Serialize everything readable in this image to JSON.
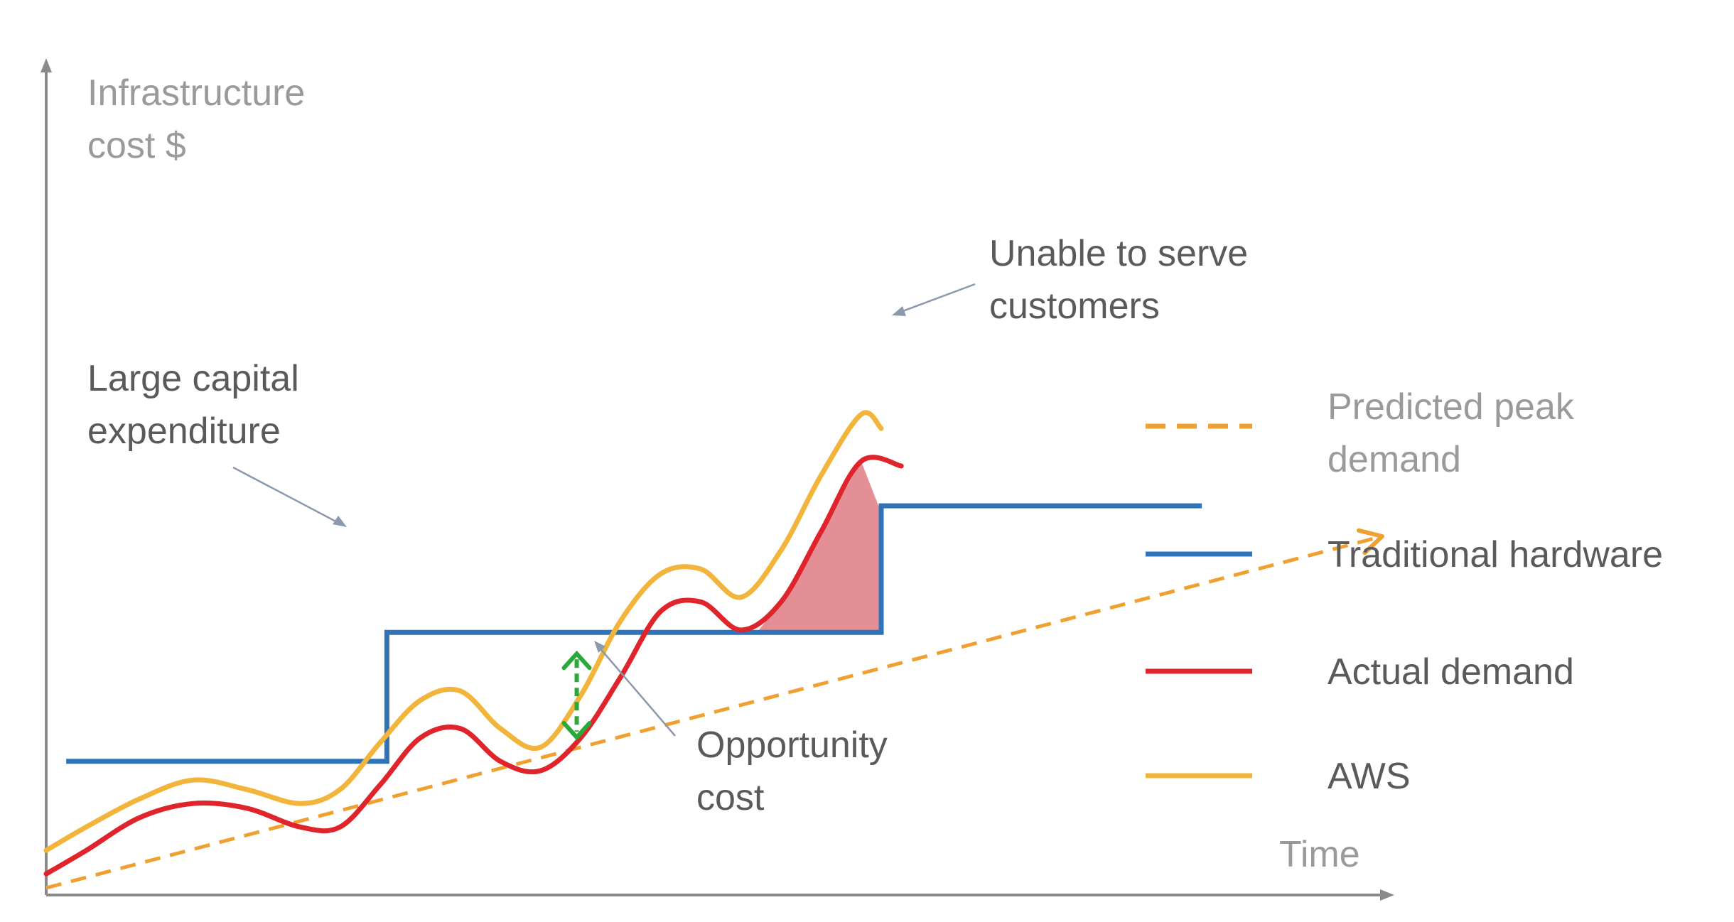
{
  "colors": {
    "predicted": "#f0a030",
    "traditional": "#2f73b8",
    "actual": "#e0242b",
    "aws": "#f2b43a",
    "axis": "#8a8a8a",
    "opportunity": "#2aa83a",
    "unable_fill": "#d96a72",
    "pointer": "#8a99ad"
  },
  "chart_data": {
    "type": "line",
    "ylabel": [
      "Infrastructure",
      "cost $"
    ],
    "xlabel": "Time",
    "grid": false,
    "legend_position": "right",
    "series": [
      {
        "key": "predicted",
        "name": "Predicted peak demand",
        "name_lines": [
          "Predicted peak",
          "demand"
        ],
        "style": "dashed",
        "x": [
          0,
          100
        ],
        "y": [
          0,
          75
        ]
      },
      {
        "key": "traditional",
        "name": "Traditional hardware",
        "name_lines": [
          "Traditional hardware"
        ],
        "style": "step",
        "x": [
          1.5,
          25.5,
          25.5,
          62.5,
          62.5,
          86.5
        ],
        "y": [
          27,
          27,
          54.5,
          54.5,
          81.5,
          81.5
        ]
      },
      {
        "key": "actual",
        "name": "Actual demand",
        "name_lines": [
          "Actual demand"
        ],
        "style": "solid",
        "x": [
          0,
          3,
          7,
          11,
          15,
          19,
          22,
          25,
          28,
          31,
          34,
          37,
          40,
          43,
          46,
          49,
          52,
          55,
          58,
          61,
          64
        ],
        "y": [
          3,
          8,
          15,
          18,
          17,
          13,
          13,
          22,
          32,
          34,
          27,
          25,
          32,
          45,
          59,
          61,
          55,
          61,
          76,
          91,
          90
        ]
      },
      {
        "key": "aws",
        "name": "AWS",
        "name_lines": [
          "AWS"
        ],
        "style": "solid",
        "x": [
          0,
          3,
          7,
          11,
          15,
          19,
          22,
          25,
          28,
          31,
          34,
          37,
          40,
          43,
          46,
          49,
          52,
          55,
          58,
          61,
          62.5
        ],
        "y": [
          8,
          13,
          19,
          23,
          21,
          18,
          21,
          31,
          40,
          42,
          34,
          30,
          41,
          57,
          67,
          68,
          62,
          72,
          88,
          101,
          98
        ]
      }
    ],
    "annotations": [
      {
        "key": "capex",
        "lines": [
          "Large capital",
          "expenditure"
        ]
      },
      {
        "key": "unable",
        "lines": [
          "Unable to serve",
          "customers"
        ]
      },
      {
        "key": "opportunity",
        "lines": [
          "Opportunity",
          "cost"
        ]
      }
    ]
  }
}
